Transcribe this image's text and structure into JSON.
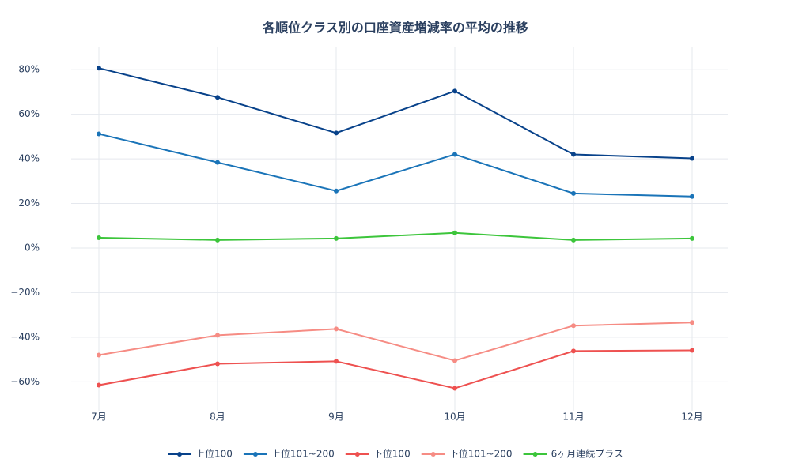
{
  "chart_data": {
    "type": "line",
    "title": "各順位クラス別の口座資産増減率の平均の推移",
    "categories": [
      "7月",
      "8月",
      "9月",
      "10月",
      "11月",
      "12月"
    ],
    "series": [
      {
        "name": "上位100",
        "color": "#08428a",
        "values": [
          80.7,
          67.6,
          51.6,
          70.4,
          42.0,
          40.2
        ]
      },
      {
        "name": "上位101~200",
        "color": "#1a74b8",
        "values": [
          51.2,
          38.4,
          25.6,
          42.0,
          24.5,
          23.1
        ]
      },
      {
        "name": "下位100",
        "color": "#ee5150",
        "values": [
          -61.5,
          -51.9,
          -50.8,
          -62.9,
          -46.2,
          -45.9
        ]
      },
      {
        "name": "下位101~200",
        "color": "#f68c84",
        "values": [
          -48.0,
          -39.1,
          -36.3,
          -50.5,
          -34.8,
          -33.4
        ]
      },
      {
        "name": "6ヶ月連続プラス",
        "color": "#3cc53b",
        "values": [
          4.6,
          3.6,
          4.3,
          6.8,
          3.6,
          4.3
        ]
      }
    ],
    "ylim": [
      -73,
      90
    ],
    "yticks": [
      {
        "value": -60,
        "label": "−60%"
      },
      {
        "value": -40,
        "label": "−40%"
      },
      {
        "value": -20,
        "label": "−20%"
      },
      {
        "value": 0,
        "label": "0%"
      },
      {
        "value": 20,
        "label": "20%"
      },
      {
        "value": 40,
        "label": "40%"
      },
      {
        "value": 60,
        "label": "60%"
      },
      {
        "value": 80,
        "label": "80%"
      }
    ],
    "grid": true,
    "legend": "bottom"
  }
}
